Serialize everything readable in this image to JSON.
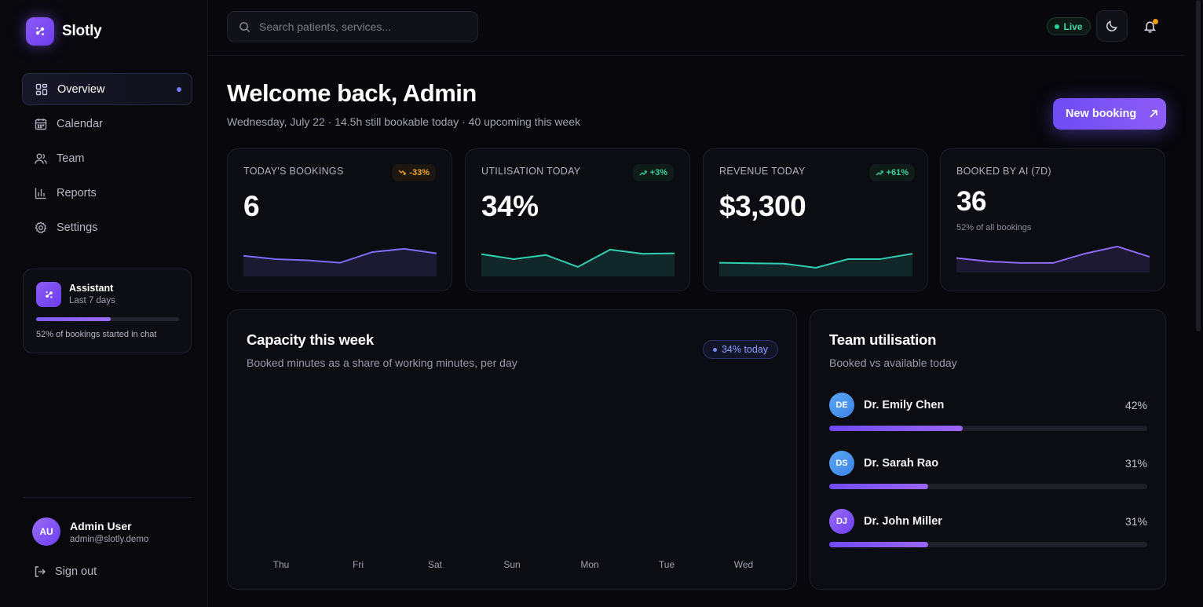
{
  "brand": {
    "name": "Slotly"
  },
  "sidebar": {
    "items": [
      {
        "label": "Overview",
        "icon": "grid-icon",
        "active": true
      },
      {
        "label": "Calendar",
        "icon": "calendar-icon",
        "active": false
      },
      {
        "label": "Team",
        "icon": "users-icon",
        "active": false
      },
      {
        "label": "Reports",
        "icon": "bar-chart-icon",
        "active": false
      },
      {
        "label": "Settings",
        "icon": "gear-icon",
        "active": false
      }
    ],
    "assistant": {
      "title": "Assistant",
      "subtitle": "Last 7 days",
      "progress": 0.52,
      "note": "52% of bookings started in chat"
    },
    "user": {
      "initials": "AU",
      "name": "Admin User",
      "email": "admin@slotly.demo"
    },
    "signout_label": "Sign out"
  },
  "topbar": {
    "search_placeholder": "Search patients, services...",
    "live_label": "Live",
    "theme_icon": "moon-icon",
    "notifications_icon": "bell-icon"
  },
  "header": {
    "title": "Welcome back, Admin",
    "subtitle": "Wednesday, July 22 · 14.5h still bookable today · 40 upcoming this week",
    "new_booking_label": "New booking"
  },
  "kpis": [
    {
      "label": "TODAY'S BOOKINGS",
      "value": "6",
      "badge": "-33%",
      "trend": "down",
      "color": "#7c6cf6",
      "spark": [
        5,
        4.2,
        3.9,
        3.3,
        5.9,
        6.7,
        5.6
      ]
    },
    {
      "label": "UTILISATION TODAY",
      "value": "34%",
      "badge": "+3%",
      "trend": "up",
      "color": "#2fcfb1",
      "spark": [
        5.4,
        4.2,
        5.2,
        2.3,
        6.5,
        5.5,
        5.6
      ]
    },
    {
      "label": "REVENUE TODAY",
      "value": "$3,300",
      "badge": "+61%",
      "trend": "up",
      "color": "#2fcfb1",
      "spark": [
        3.3,
        3.2,
        3.1,
        2.1,
        4.2,
        4.2,
        5.5
      ]
    },
    {
      "label": "BOOKED BY AI (7D)",
      "value": "36",
      "badge": "",
      "trend": "",
      "note": "52% of all bookings",
      "color": "#8d6cf7",
      "spark": [
        3.5,
        2.7,
        2.3,
        2.3,
        4.6,
        6.3,
        3.8
      ]
    }
  ],
  "capacity": {
    "title": "Capacity this week",
    "subtitle": "Booked minutes as a share of working minutes, per day",
    "today_label": "34% today",
    "days": [
      "Thu",
      "Fri",
      "Sat",
      "Sun",
      "Mon",
      "Tue",
      "Wed"
    ]
  },
  "team": {
    "title": "Team utilisation",
    "subtitle": "Booked vs available today",
    "members": [
      {
        "initials": "DE",
        "name": "Dr. Emily Chen",
        "pct": "42%",
        "value": 0.42,
        "avatar_color": "#4a9ff0"
      },
      {
        "initials": "DS",
        "name": "Dr. Sarah Rao",
        "pct": "31%",
        "value": 0.31,
        "avatar_color": "#4aa0f0"
      },
      {
        "initials": "DJ",
        "name": "Dr. John Miller",
        "pct": "31%",
        "value": 0.31,
        "avatar_color": "#8b5cf6"
      }
    ]
  },
  "colors": {
    "accent": "#7c5cf7",
    "teal": "#2fcfb1",
    "warning": "#f5a524",
    "live": "#23d39a"
  }
}
